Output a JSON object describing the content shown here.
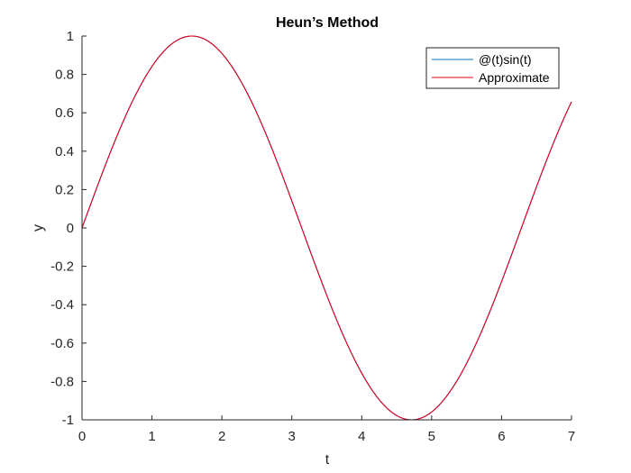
{
  "chart_data": {
    "type": "line",
    "title": "Heun’s Method",
    "xlabel": "t",
    "ylabel": "y",
    "xlim": [
      0,
      7
    ],
    "ylim": [
      -1,
      1
    ],
    "x_ticks": [
      0,
      1,
      2,
      3,
      4,
      5,
      6,
      7
    ],
    "y_ticks": [
      1,
      0.8,
      0.6,
      0.4,
      0.2,
      0,
      -0.2,
      -0.4,
      -0.6,
      -0.8,
      -1
    ],
    "grid": false,
    "legend_position": "top-right",
    "series": [
      {
        "name": "@(t)sin(t)",
        "color": "#0072BD",
        "x": [
          0,
          0.25,
          0.5,
          0.75,
          1,
          1.25,
          1.5,
          1.5708,
          1.75,
          2,
          2.25,
          2.5,
          2.75,
          3,
          3.25,
          3.5,
          3.75,
          4,
          4.25,
          4.5,
          4.7124,
          4.75,
          5,
          5.25,
          5.5,
          5.75,
          6,
          6.25,
          6.5,
          6.75,
          7
        ],
        "y": [
          0,
          0.247,
          0.479,
          0.682,
          0.841,
          0.949,
          0.997,
          1,
          0.984,
          0.909,
          0.778,
          0.598,
          0.382,
          0.141,
          -0.108,
          -0.351,
          -0.572,
          -0.757,
          -0.895,
          -0.978,
          -1,
          -0.999,
          -0.959,
          -0.859,
          -0.706,
          -0.508,
          -0.279,
          -0.033,
          0.215,
          0.45,
          0.657
        ]
      },
      {
        "name": "Approximate",
        "color": "#E3001B",
        "x": [
          0,
          0.25,
          0.5,
          0.75,
          1,
          1.25,
          1.5,
          1.5708,
          1.75,
          2,
          2.25,
          2.5,
          2.75,
          3,
          3.25,
          3.5,
          3.75,
          4,
          4.25,
          4.5,
          4.7124,
          4.75,
          5,
          5.25,
          5.5,
          5.75,
          6,
          6.25,
          6.5,
          6.75,
          7
        ],
        "y": [
          0,
          0.247,
          0.479,
          0.682,
          0.841,
          0.949,
          0.997,
          1,
          0.984,
          0.909,
          0.778,
          0.598,
          0.382,
          0.141,
          -0.108,
          -0.351,
          -0.572,
          -0.757,
          -0.895,
          -0.978,
          -1,
          -0.999,
          -0.959,
          -0.859,
          -0.706,
          -0.508,
          -0.279,
          -0.033,
          0.215,
          0.45,
          0.657
        ]
      }
    ]
  }
}
